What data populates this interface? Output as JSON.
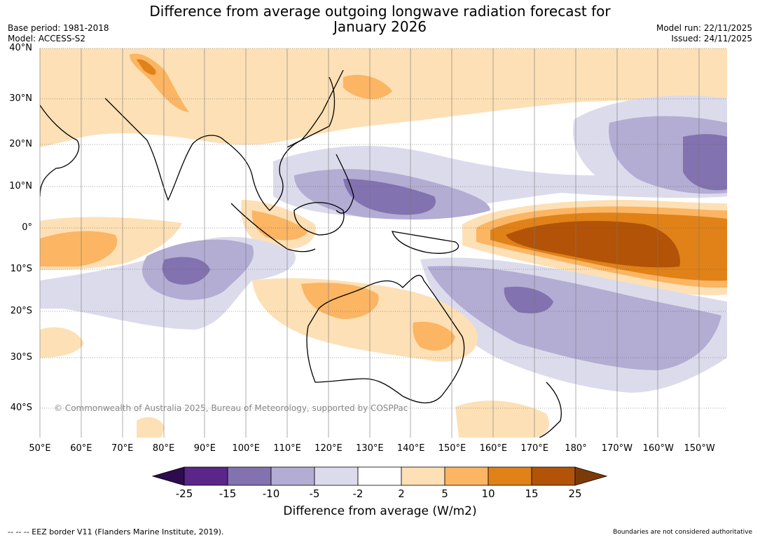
{
  "title_line1": "Difference from average outgoing longwave radiation forecast for",
  "title_line2": "January 2026",
  "meta_left": [
    "Base period: 1981-2018",
    "Model: ACCESS-S2"
  ],
  "meta_right": [
    "Model run: 22/11/2025",
    "Issued: 24/11/2025"
  ],
  "lat_labels": [
    "40°N",
    "30°N",
    "20°N",
    "10°N",
    "0°",
    "10°S",
    "20°S",
    "30°S",
    "40°S"
  ],
  "lon_labels": [
    "50°E",
    "60°E",
    "70°E",
    "80°E",
    "90°E",
    "100°E",
    "110°E",
    "120°E",
    "130°E",
    "140°E",
    "150°E",
    "160°E",
    "170°E",
    "180°",
    "170°W",
    "160°W",
    "150°W"
  ],
  "copyright": "© Commonwealth of Australia 2025, Bureau of Meteorology, supported by COSPPac",
  "colorbar": {
    "ticks": [
      "-25",
      "-15",
      "-10",
      "-5",
      "-2",
      "2",
      "5",
      "10",
      "15",
      "25"
    ],
    "colors": [
      "#2d0b4e",
      "#5a2689",
      "#8272b0",
      "#b3acd3",
      "#dcdbec",
      "#ffffff",
      "#fde0b5",
      "#fbb563",
      "#e08218",
      "#b25307",
      "#7d3a09"
    ],
    "title": "Difference from average (W/m2)"
  },
  "footer_left": "--  --  -- EEZ border V11 (Flanders Marine Institute, 2019).",
  "footer_right": "Boundaries are not considered authoritative"
}
